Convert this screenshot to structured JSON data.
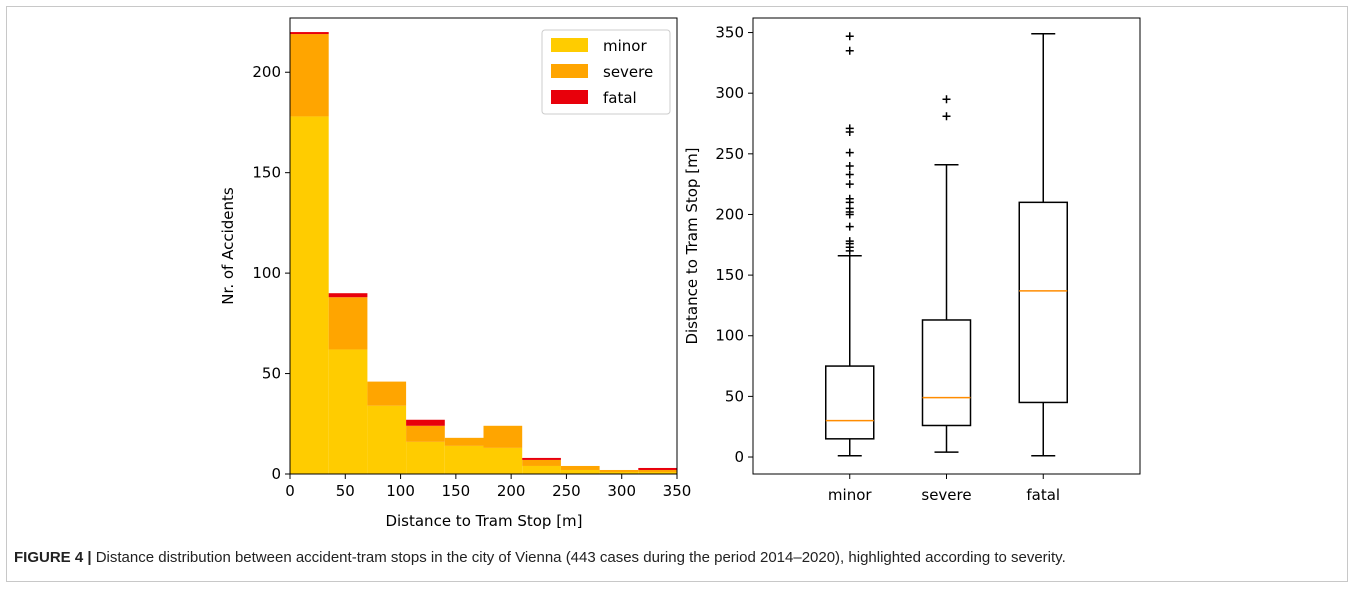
{
  "caption": {
    "label": "FIGURE 4 |",
    "text": " Distance distribution between accident-tram stops in the city of Vienna (443 cases during the period 2014–2020), highlighted according to severity."
  },
  "chart_data": [
    {
      "type": "bar",
      "stacked": true,
      "xlabel": "Distance to Tram Stop [m]",
      "ylabel": "Nr. of Accidents",
      "xlim": [
        0,
        350
      ],
      "ylim": [
        0,
        227
      ],
      "xticks": [
        "0",
        "50",
        "100",
        "150",
        "200",
        "250",
        "300",
        "350"
      ],
      "yticks": [
        "0",
        "50",
        "100",
        "150",
        "200"
      ],
      "legend_position": "top-right",
      "bin_edges": [
        0,
        35,
        70,
        105,
        140,
        175,
        210,
        245,
        280,
        315,
        350
      ],
      "series": [
        {
          "name": "minor",
          "color": "#ffcc00",
          "values": [
            178,
            62,
            34,
            16,
            14,
            13,
            4,
            2,
            1,
            1
          ]
        },
        {
          "name": "severe",
          "color": "#ffa500",
          "values": [
            41,
            26,
            12,
            8,
            4,
            11,
            3,
            2,
            1,
            1
          ]
        },
        {
          "name": "fatal",
          "color": "#e8000b",
          "values": [
            1,
            2,
            0,
            3,
            0,
            0,
            1,
            0,
            0,
            1
          ]
        }
      ]
    },
    {
      "type": "boxplot",
      "xlabel": "",
      "ylabel": "Distance to Tram Stop [m]",
      "ylim": [
        -14,
        362
      ],
      "yticks": [
        "0",
        "50",
        "100",
        "150",
        "200",
        "250",
        "300",
        "350"
      ],
      "categories": [
        "minor",
        "severe",
        "fatal"
      ],
      "median_color": "#ff8c00",
      "boxes": [
        {
          "category": "minor",
          "whisker_low": 1,
          "q1": 15,
          "median": 30,
          "q3": 75,
          "whisker_high": 166,
          "outliers": [
            170,
            173,
            176,
            178,
            190,
            200,
            202,
            205,
            210,
            213,
            225,
            233,
            240,
            251,
            268,
            271,
            335,
            347
          ]
        },
        {
          "category": "severe",
          "whisker_low": 4,
          "q1": 26,
          "median": 49,
          "q3": 113,
          "whisker_high": 241,
          "outliers": [
            281,
            295
          ]
        },
        {
          "category": "fatal",
          "whisker_low": 1,
          "q1": 45,
          "median": 137,
          "q3": 210,
          "whisker_high": 349,
          "outliers": []
        }
      ]
    }
  ]
}
